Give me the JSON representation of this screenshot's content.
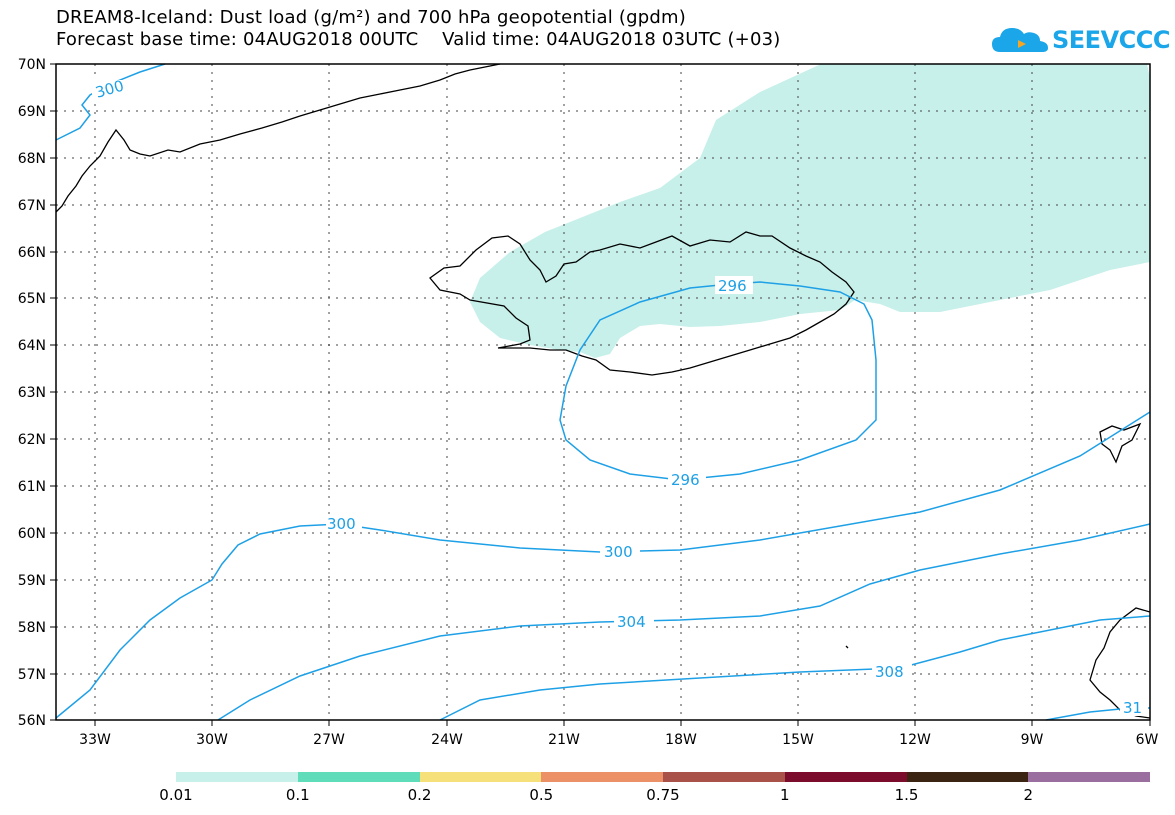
{
  "header": {
    "title_line1": "DREAM8-Iceland: Dust load (g/m²) and 700 hPa geopotential (gpdm)",
    "title_line2": "Forecast base time: 04AUG2018 00UTC    Valid time: 04AUG2018 03UTC (+03)"
  },
  "logo": {
    "text": "SEEVCCC",
    "icon": "cloud-icon",
    "color": "#1aa6e8"
  },
  "map": {
    "lon_range": [
      -34,
      -6
    ],
    "lat_range": [
      56,
      70
    ],
    "lat_labels": [
      "70N",
      "69N",
      "68N",
      "67N",
      "66N",
      "65N",
      "64N",
      "63N",
      "62N",
      "61N",
      "60N",
      "59N",
      "58N",
      "57N",
      "56N"
    ],
    "lon_labels": [
      "33W",
      "30W",
      "27W",
      "24W",
      "21W",
      "18W",
      "15W",
      "12W",
      "9W",
      "6W"
    ],
    "gridlines": "dotted",
    "coastline_color": "#000000",
    "dust_fill_color": "#c7f0ea",
    "contour_color": "#1ea0e6",
    "contour_labels": [
      "300",
      "300",
      "300",
      "296",
      "296",
      "304",
      "308",
      "31"
    ]
  },
  "colorbar": {
    "colors": [
      "#c7f0ea",
      "#5fdcb9",
      "#f5e07a",
      "#ec9068",
      "#a8524a",
      "#7b0c2c",
      "#3c2412",
      "#9a6fa0"
    ],
    "labels": [
      "0.01",
      "0.1",
      "0.2",
      "0.5",
      "0.75",
      "1",
      "1.5",
      "2"
    ]
  }
}
